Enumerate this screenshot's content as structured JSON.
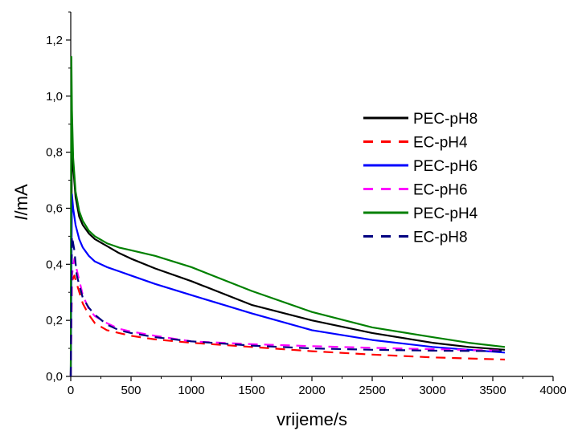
{
  "chart_data": {
    "type": "line",
    "xlabel": "vrijeme/s",
    "ylabel": {
      "italic": "I",
      "rest": "/mA"
    },
    "xlim": [
      0,
      4000
    ],
    "ylim": [
      0,
      1.3
    ],
    "x_ticks": [
      "0",
      "500",
      "1000",
      "1500",
      "2000",
      "2500",
      "3000",
      "3500",
      "4000"
    ],
    "x_tick_values": [
      0,
      500,
      1000,
      1500,
      2000,
      2500,
      3000,
      3500,
      4000
    ],
    "y_ticks": [
      "0,0",
      "0,2",
      "0,4",
      "0,6",
      "0,8",
      "1,0",
      "1,2"
    ],
    "y_tick_values": [
      0,
      0.2,
      0.4,
      0.6,
      0.8,
      1.0,
      1.2
    ],
    "grid": false,
    "legend_position": "top-right",
    "series": [
      {
        "name": "PEC-pH8",
        "color": "#000000",
        "dash": "solid",
        "x": [
          0,
          10,
          20,
          40,
          70,
          100,
          150,
          200,
          300,
          400,
          500,
          700,
          1000,
          1500,
          2000,
          2500,
          3000,
          3300,
          3600
        ],
        "y": [
          0.0,
          0.88,
          0.75,
          0.64,
          0.57,
          0.54,
          0.51,
          0.49,
          0.465,
          0.44,
          0.42,
          0.385,
          0.34,
          0.255,
          0.2,
          0.155,
          0.12,
          0.105,
          0.095
        ]
      },
      {
        "name": "EC-pH4",
        "color": "#ff0000",
        "dash": "dashed",
        "x": [
          0,
          10,
          30,
          50,
          100,
          150,
          200,
          300,
          400,
          500,
          700,
          1000,
          1500,
          2000,
          2500,
          3000,
          3600
        ],
        "y": [
          0.0,
          0.34,
          0.36,
          0.33,
          0.26,
          0.22,
          0.19,
          0.165,
          0.155,
          0.145,
          0.132,
          0.12,
          0.105,
          0.09,
          0.078,
          0.068,
          0.06
        ]
      },
      {
        "name": "PEC-pH6",
        "color": "#0000ff",
        "dash": "solid",
        "x": [
          0,
          10,
          20,
          40,
          70,
          100,
          150,
          200,
          300,
          400,
          500,
          700,
          1000,
          1500,
          2000,
          2500,
          3000,
          3300,
          3600
        ],
        "y": [
          0.0,
          0.65,
          0.6,
          0.54,
          0.49,
          0.46,
          0.43,
          0.41,
          0.39,
          0.375,
          0.36,
          0.33,
          0.29,
          0.225,
          0.165,
          0.13,
          0.105,
          0.095,
          0.085
        ]
      },
      {
        "name": "EC-pH6",
        "color": "#ff00ff",
        "dash": "dashed",
        "x": [
          0,
          10,
          30,
          50,
          100,
          150,
          200,
          300,
          400,
          500,
          700,
          1000,
          1500,
          2000,
          2500,
          3000,
          3600
        ],
        "y": [
          0.0,
          0.36,
          0.42,
          0.38,
          0.29,
          0.24,
          0.215,
          0.19,
          0.17,
          0.16,
          0.145,
          0.125,
          0.115,
          0.108,
          0.102,
          0.097,
          0.092
        ]
      },
      {
        "name": "PEC-pH4",
        "color": "#008000",
        "dash": "solid",
        "x": [
          0,
          5,
          10,
          20,
          40,
          70,
          100,
          150,
          200,
          300,
          400,
          500,
          700,
          1000,
          1500,
          2000,
          2500,
          3000,
          3300,
          3600
        ],
        "y": [
          0.0,
          1.14,
          0.95,
          0.78,
          0.66,
          0.59,
          0.555,
          0.52,
          0.5,
          0.475,
          0.46,
          0.45,
          0.43,
          0.39,
          0.305,
          0.23,
          0.175,
          0.14,
          0.12,
          0.105
        ]
      },
      {
        "name": "EC-pH8",
        "color": "#000080",
        "dash": "dashed",
        "x": [
          0,
          10,
          30,
          50,
          100,
          150,
          200,
          300,
          400,
          500,
          700,
          1000,
          1500,
          2000,
          2500,
          3000,
          3600
        ],
        "y": [
          0.0,
          0.5,
          0.45,
          0.36,
          0.28,
          0.245,
          0.22,
          0.185,
          0.165,
          0.155,
          0.14,
          0.125,
          0.11,
          0.1,
          0.095,
          0.092,
          0.09
        ]
      }
    ]
  }
}
